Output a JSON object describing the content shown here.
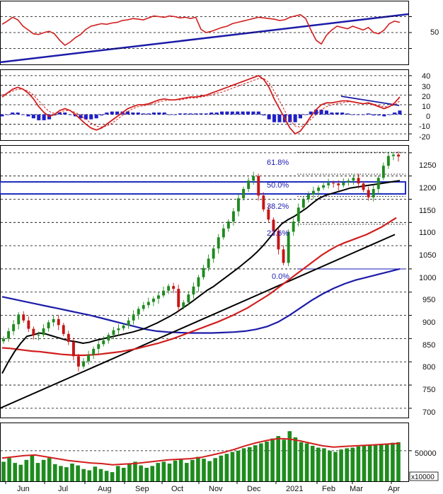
{
  "chart_data": [
    {
      "type": "line",
      "panel": "momentum-oscillator",
      "y_ticks": [
        "50"
      ],
      "reference_levels": [
        75,
        50,
        25
      ],
      "series": [
        {
          "values": [
            63,
            68,
            74,
            70,
            60,
            54,
            48,
            47,
            50,
            52,
            48,
            38,
            30,
            35,
            42,
            47,
            55,
            60,
            62,
            64,
            63,
            65,
            66,
            69,
            70,
            72,
            71,
            70,
            73,
            76,
            75,
            74,
            76,
            75,
            73,
            74,
            72,
            74,
            55,
            50,
            52,
            55,
            58,
            60,
            64,
            66,
            68,
            70,
            72,
            74,
            73,
            72,
            71,
            69,
            70,
            74,
            76,
            78,
            72,
            54,
            38,
            32,
            46,
            54,
            60,
            58,
            56,
            60,
            57,
            54,
            58,
            50,
            48,
            54,
            64,
            68,
            66
          ]
        }
      ]
    },
    {
      "type": "line",
      "panel": "macd",
      "y_ticks": [
        "40",
        "30",
        "20",
        "10",
        "0",
        "-10",
        "-20"
      ],
      "ylim": [
        -25,
        45
      ],
      "grid": true,
      "series": [
        {
          "values": [
            18,
            22,
            26,
            28,
            26,
            22,
            16,
            8,
            2,
            -2,
            0,
            4,
            6,
            4,
            0,
            -5,
            -10,
            -14,
            -16,
            -14,
            -10,
            -6,
            -2,
            2,
            6,
            8,
            10,
            10,
            11,
            13,
            15,
            16,
            15,
            15,
            16,
            17,
            18,
            18,
            19,
            20,
            22,
            24,
            26,
            28,
            30,
            32,
            34,
            36,
            38,
            40,
            36,
            28,
            16,
            6,
            -4,
            -14,
            -20,
            -17,
            -10,
            -2,
            5,
            10,
            12,
            12,
            13,
            14,
            14,
            13,
            12,
            11,
            12,
            10,
            8,
            6,
            8,
            12,
            18
          ]
        },
        {
          "values": [
            20,
            22,
            24,
            26,
            26,
            24,
            20,
            14,
            8,
            3,
            1,
            2,
            4,
            4,
            2,
            -1,
            -5,
            -9,
            -12,
            -13,
            -12,
            -9,
            -5,
            -1,
            3,
            6,
            8,
            9,
            10,
            11,
            13,
            14,
            15,
            15,
            15,
            16,
            17,
            17,
            18,
            19,
            20,
            22,
            23,
            25,
            27,
            29,
            31,
            33,
            35,
            37,
            37,
            33,
            24,
            14,
            4,
            -6,
            -12,
            -13,
            -10,
            -5,
            0,
            5,
            8,
            10,
            11,
            12,
            13,
            13,
            12,
            11,
            11,
            11,
            9,
            8,
            8,
            10,
            14
          ]
        }
      ],
      "histogram": [
        -2,
        0,
        2,
        2,
        0,
        -2,
        -4,
        -6,
        -6,
        -5,
        -1,
        2,
        2,
        0,
        -2,
        -4,
        -5,
        -5,
        -4,
        -1,
        2,
        3,
        3,
        3,
        3,
        2,
        2,
        1,
        1,
        2,
        2,
        2,
        0,
        0,
        1,
        1,
        1,
        1,
        1,
        1,
        2,
        2,
        3,
        3,
        3,
        3,
        3,
        3,
        3,
        3,
        -1,
        -5,
        -8,
        -8,
        -8,
        -8,
        -8,
        -4,
        0,
        3,
        5,
        5,
        4,
        2,
        2,
        2,
        1,
        0,
        0,
        0,
        1,
        -1,
        -1,
        -2,
        0,
        2,
        4
      ]
    },
    {
      "type": "candlestick",
      "panel": "price",
      "y_ticks": [
        "1250",
        "1200",
        "1150",
        "1100",
        "1050",
        "1000",
        "950",
        "900",
        "850",
        "800",
        "750",
        "700"
      ],
      "ylim": [
        680,
        1265
      ],
      "grid": true,
      "fibonacci_labels": [
        "61.8%",
        "50.0%",
        "38.2%",
        "23.6%",
        "0.0%"
      ],
      "fibonacci_levels": [
        1251,
        1204,
        1156,
        1096,
        1000
      ],
      "close": [
        850,
        866,
        881,
        902,
        889,
        871,
        857,
        858,
        872,
        885,
        892,
        879,
        860,
        843,
        812,
        790,
        801,
        815,
        828,
        838,
        846,
        858,
        868,
        872,
        878,
        889,
        902,
        914,
        922,
        929,
        936,
        943,
        953,
        963,
        957,
        918,
        928,
        945,
        962,
        982,
        1002,
        1022,
        1044,
        1068,
        1087,
        1102,
        1124,
        1152,
        1172,
        1190,
        1200,
        1158,
        1128,
        1106,
        1082,
        1042,
        1013,
        1080,
        1102,
        1132,
        1150,
        1160,
        1168,
        1175,
        1180,
        1185,
        1184,
        1180,
        1186,
        1190,
        1196,
        1184,
        1170,
        1154,
        1172,
        1196,
        1222,
        1243,
        1246,
        1242
      ],
      "ma_short": [
        775,
        800,
        822,
        840,
        855,
        858,
        862,
        860,
        856,
        852,
        848,
        845,
        843,
        840,
        842,
        846,
        849,
        852,
        855,
        858,
        861,
        864,
        868,
        872,
        878,
        884,
        891,
        898,
        906,
        915,
        924,
        934,
        944,
        954,
        962,
        972,
        982,
        992,
        1002,
        1013,
        1024,
        1036,
        1050,
        1066,
        1083,
        1097,
        1106,
        1113,
        1122,
        1131,
        1142,
        1152,
        1158,
        1162,
        1166,
        1170,
        1174,
        1176,
        1178,
        1180,
        1182,
        1184,
        1186,
        1188,
        1190
      ],
      "ma_medium": [
        830,
        829,
        827,
        825,
        823,
        822,
        820,
        818,
        816,
        815,
        814,
        814,
        815,
        816,
        818,
        820,
        822,
        825,
        828,
        832,
        836,
        840,
        845,
        850,
        856,
        862,
        868,
        874,
        880,
        886,
        893,
        900,
        908,
        916,
        926,
        936,
        946,
        958,
        970,
        982,
        994,
        1006,
        1018,
        1030,
        1040,
        1049,
        1056,
        1062,
        1068,
        1074,
        1082,
        1090,
        1100,
        1110
      ],
      "ma_long": [
        940,
        935,
        930,
        925,
        920,
        915,
        910,
        905,
        900,
        894,
        888,
        882,
        876,
        870,
        866,
        864,
        863,
        862,
        862,
        862,
        863,
        864,
        866,
        870,
        876,
        886,
        900,
        916,
        932,
        946,
        958,
        968,
        976,
        982,
        988,
        994,
        1000
      ],
      "trendline": [
        {
          "x": "Jun",
          "y": 700
        },
        {
          "x": "Apr",
          "y": 1074
        }
      ]
    },
    {
      "type": "bar",
      "panel": "volume",
      "y_ticks": [
        "50000"
      ],
      "unit_label": "x10000",
      "values": [
        32000,
        38000,
        30000,
        27000,
        35000,
        42000,
        30000,
        35000,
        38000,
        28000,
        25000,
        23000,
        29000,
        26000,
        20000,
        18000,
        24000,
        20000,
        17000,
        15000,
        25000,
        22000,
        28000,
        32000,
        26000,
        22000,
        25000,
        30000,
        32000,
        29000,
        34000,
        37000,
        30000,
        35000,
        40000,
        37000,
        33000,
        38000,
        42000,
        45000,
        48000,
        50000,
        54000,
        56000,
        59000,
        62000,
        65000,
        70000,
        74000,
        68000,
        82000,
        72000,
        64000,
        62000,
        58000,
        55000,
        54000,
        50000,
        48000,
        52000,
        54000,
        55000,
        57000,
        58000,
        60000,
        60000,
        61000,
        62000,
        63000,
        64000
      ],
      "ma": [
        38000,
        40000,
        42000,
        43000,
        40000,
        37000,
        34000,
        32000,
        30000,
        29000,
        27000,
        28000,
        29000,
        31000,
        33000,
        35000,
        36000,
        37000,
        39000,
        43000,
        47000,
        52000,
        58000,
        63000,
        67000,
        70000,
        69000,
        66000,
        62000,
        58000,
        56000,
        57000,
        58000,
        59000,
        60000,
        61000,
        62000
      ]
    }
  ],
  "x_axis": {
    "labels": [
      "Jun",
      "Jul",
      "Aug",
      "Sep",
      "Oct",
      "Nov",
      "Dec",
      "2021",
      "Feb",
      "Mar",
      "Apr"
    ]
  },
  "colors": {
    "price_up": "#1f8a1f",
    "price_down": "#c81414",
    "ma_red": "#d21e1e",
    "ma_black": "#000000",
    "ma_blue": "#1c1ca8",
    "resistance_box": "#1f2fc0",
    "histogram": "#2020c8",
    "volume_bar": "#1e8c1e"
  }
}
